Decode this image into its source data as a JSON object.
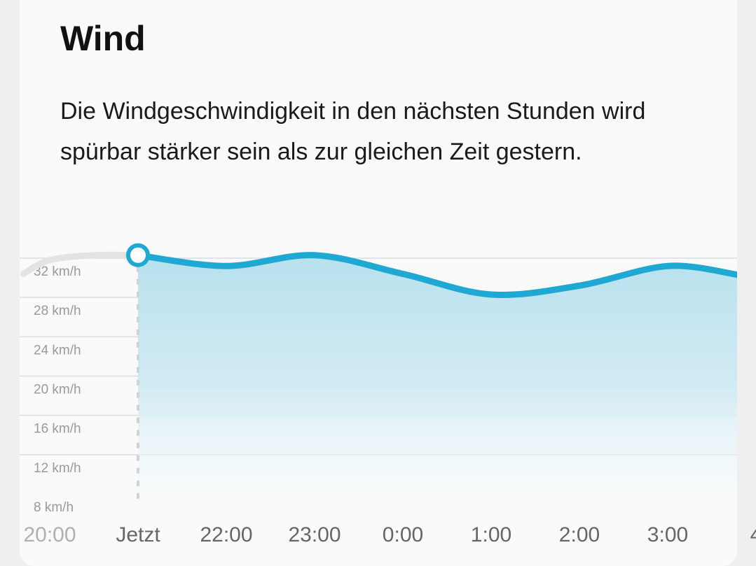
{
  "card": {
    "title": "Wind",
    "description": "Die Windgeschwindigkeit in den nächsten Stunden wird spürbar stärker sein als zur gleichen Zeit gestern."
  },
  "chart_data": {
    "type": "area",
    "title": "",
    "xlabel": "",
    "ylabel": "",
    "ylim": [
      8,
      33
    ],
    "y_ticks": [
      {
        "value": 32,
        "label": "32 km/h"
      },
      {
        "value": 28,
        "label": "28 km/h"
      },
      {
        "value": 24,
        "label": "24 km/h"
      },
      {
        "value": 20,
        "label": "20 km/h"
      },
      {
        "value": 16,
        "label": "16 km/h"
      },
      {
        "value": 12,
        "label": "12 km/h"
      },
      {
        "value": 8,
        "label": "8 km/h"
      }
    ],
    "x_ticks": [
      {
        "t": 0,
        "label": "20:00"
      },
      {
        "t": 1,
        "label": "Jetzt"
      },
      {
        "t": 2,
        "label": "22:00"
      },
      {
        "t": 3,
        "label": "23:00"
      },
      {
        "t": 4,
        "label": "0:00"
      },
      {
        "t": 5,
        "label": "1:00"
      },
      {
        "t": 6,
        "label": "2:00"
      },
      {
        "t": 7,
        "label": "3:00"
      },
      {
        "t": 8,
        "label": "4"
      }
    ],
    "now_index": 1,
    "grid": true,
    "series": [
      {
        "role": "past",
        "color": "#e3e3e3",
        "points": [
          [
            -0.3,
            30.4
          ],
          [
            0,
            31.8
          ],
          [
            0.5,
            32.3
          ],
          [
            1,
            32.3
          ]
        ]
      },
      {
        "role": "forecast",
        "color": "#1fa8d2",
        "points": [
          [
            1,
            32.3
          ],
          [
            2,
            31.2
          ],
          [
            3,
            32.3
          ],
          [
            4,
            30.4
          ],
          [
            5,
            28.3
          ],
          [
            6,
            29.2
          ],
          [
            7,
            31.2
          ],
          [
            7.8,
            30.3
          ]
        ]
      }
    ],
    "colors": {
      "line": "#1fa8d2",
      "area_top": "#b7e1ee",
      "grid": "#d7dde3",
      "now_marker_fill": "#ffffff"
    }
  }
}
